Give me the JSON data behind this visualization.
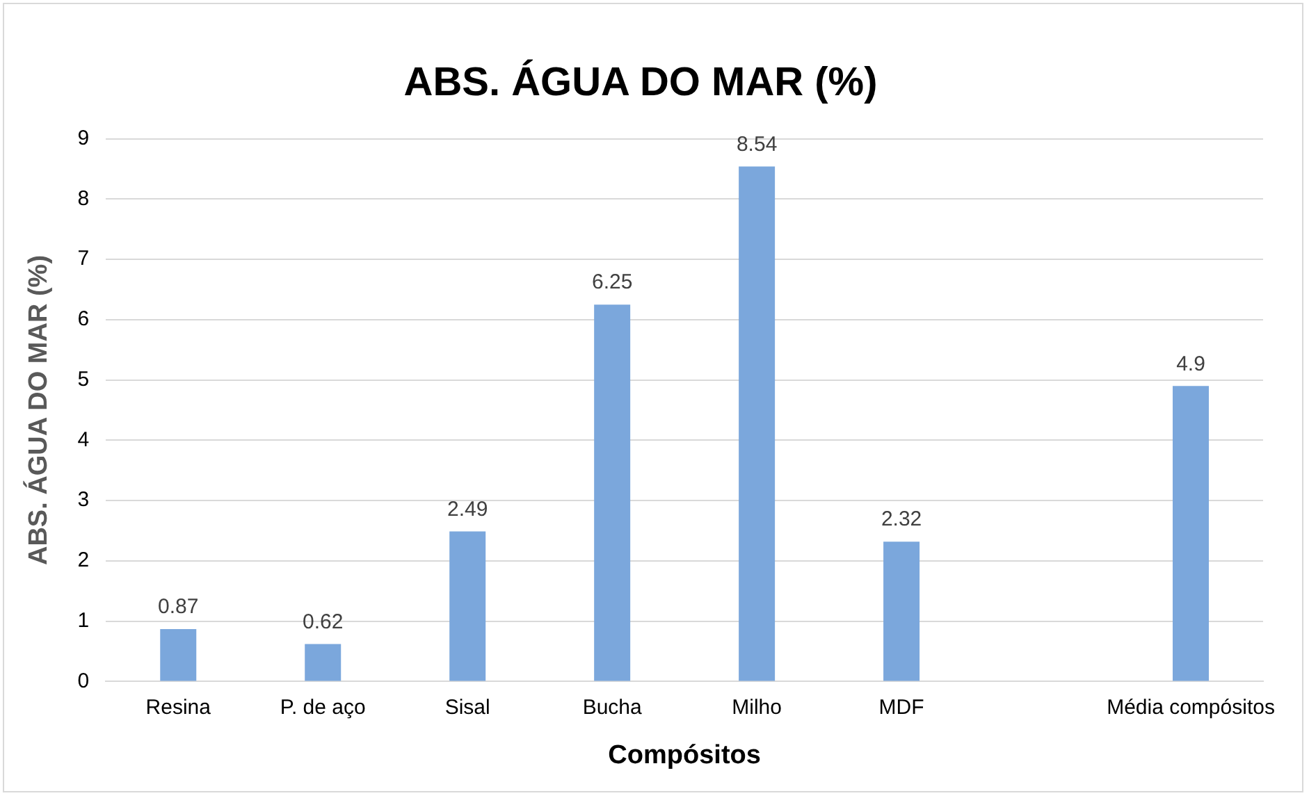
{
  "chart_data": {
    "type": "bar",
    "title": "ABS. ÁGUA DO MAR (%)",
    "xlabel": "Compósitos",
    "ylabel": "ABS. ÁGUA DO MAR (%)",
    "categories": [
      "Resina",
      "P. de aço",
      "Sisal",
      "Bucha",
      "Milho",
      "MDF",
      null,
      "Média compósitos"
    ],
    "values": [
      0.87,
      0.62,
      2.49,
      6.25,
      8.54,
      2.32,
      null,
      4.9
    ],
    "color": "#7ba7dc",
    "ylim": [
      0,
      9
    ],
    "yticks": [
      0,
      1,
      2,
      3,
      4,
      5,
      6,
      7,
      8,
      9
    ],
    "grid": "y",
    "data_labels": true,
    "legend": false
  }
}
